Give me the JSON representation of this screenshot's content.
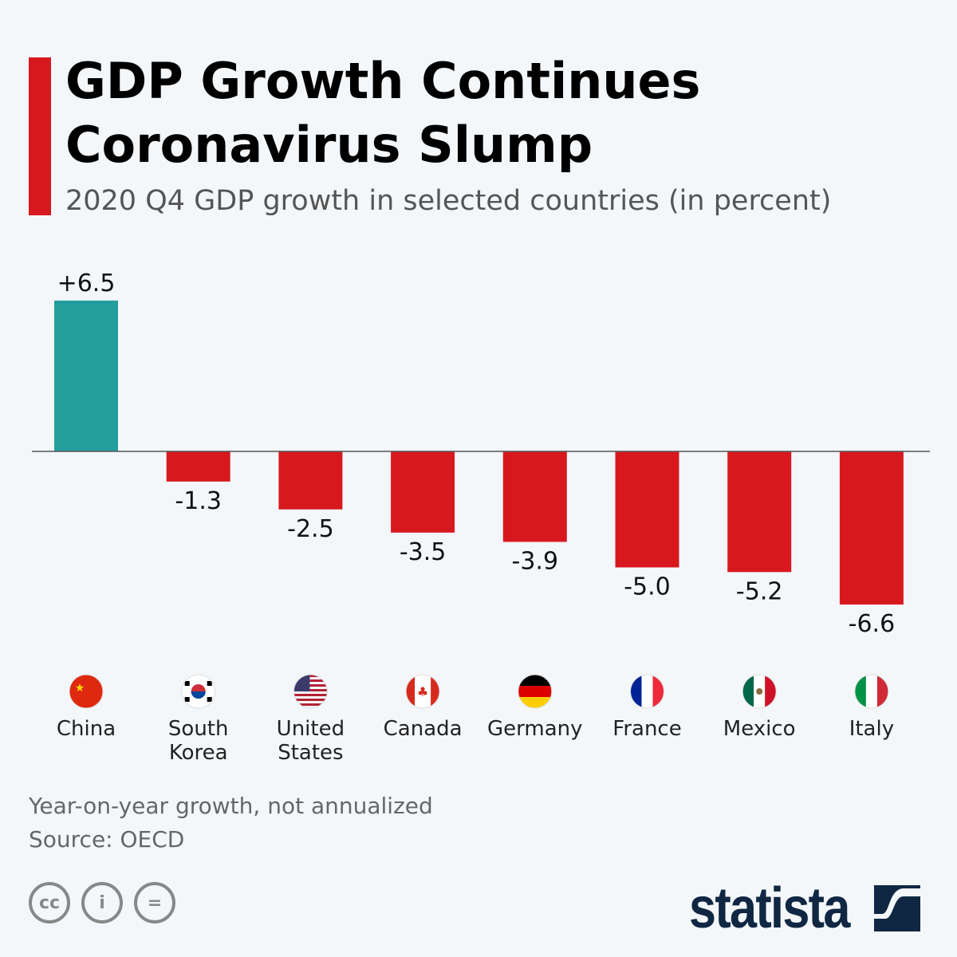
{
  "title": "GDP Growth Continues Coronavirus Slump",
  "subtitle": "2020 Q4 GDP growth in selected countries (in percent)",
  "colors": {
    "accent": "#d7191f",
    "positive": "#239e9c",
    "negative": "#d7191f",
    "axis": "#555555"
  },
  "chart_data": {
    "type": "bar",
    "title": "GDP Growth Continues Coronavirus Slump",
    "subtitle": "2020 Q4 GDP growth in selected countries (in percent)",
    "categories": [
      "China",
      "South Korea",
      "United States",
      "Canada",
      "Germany",
      "France",
      "Mexico",
      "Italy"
    ],
    "values": [
      6.5,
      -1.3,
      -2.5,
      -3.5,
      -3.9,
      -5.0,
      -5.2,
      -6.6
    ],
    "data_labels": [
      "+6.5",
      "-1.3",
      "-2.5",
      "-3.5",
      "-3.9",
      "-5.0",
      "-5.2",
      "-6.6"
    ],
    "flag_icons": [
      "china-flag-icon",
      "south-korea-flag-icon",
      "united-states-flag-icon",
      "canada-flag-icon",
      "germany-flag-icon",
      "france-flag-icon",
      "mexico-flag-icon",
      "italy-flag-icon"
    ],
    "xlabel": "",
    "ylabel": "",
    "grid": false,
    "legend": "none"
  },
  "footer": {
    "note": "Year-on-year growth, not annualized",
    "source": "Source: OECD",
    "cc_labels": [
      "cc",
      "i",
      "="
    ],
    "logo": "statista"
  }
}
